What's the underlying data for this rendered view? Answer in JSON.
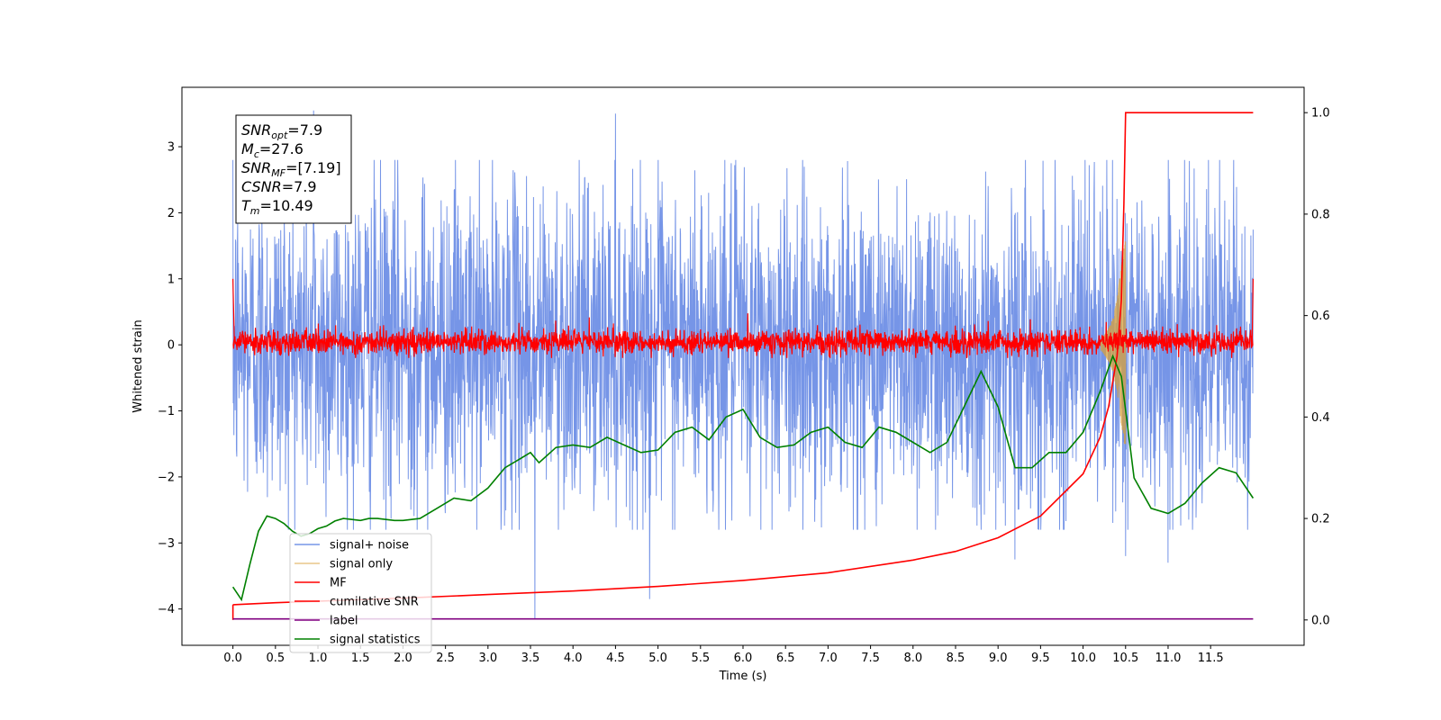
{
  "chart_data": {
    "type": "line",
    "title": "",
    "xlabel": "Time (s)",
    "ylabel": "Whitened strain",
    "y2label": "",
    "xlim": [
      -0.6,
      12.6
    ],
    "ylim": [
      -4.55,
      3.9
    ],
    "y2lim": [
      -0.05,
      1.05
    ],
    "xticks": [
      0.0,
      0.5,
      1.0,
      1.5,
      2.0,
      2.5,
      3.0,
      3.5,
      4.0,
      4.5,
      5.0,
      5.5,
      6.0,
      6.5,
      7.0,
      7.5,
      8.0,
      8.5,
      9.0,
      9.5,
      10.0,
      10.5,
      11.0,
      11.5
    ],
    "xtick_labels": [
      "0.0",
      "0.5",
      "1.0",
      "1.5",
      "2.0",
      "2.5",
      "3.0",
      "3.5",
      "4.0",
      "4.5",
      "5.0",
      "5.5",
      "6.0",
      "6.5",
      "7.0",
      "7.5",
      "8.0",
      "8.5",
      "9.0",
      "9.5",
      "10.0",
      "10.5",
      "11.0",
      "11.5"
    ],
    "yticks": [
      -4,
      -3,
      -2,
      -1,
      0,
      1,
      2,
      3
    ],
    "ytick_labels": [
      "−4",
      "−3",
      "−2",
      "−1",
      "0",
      "1",
      "2",
      "3"
    ],
    "y2ticks": [
      0.0,
      0.2,
      0.4,
      0.6,
      0.8,
      1.0
    ],
    "y2tick_labels": [
      "0.0",
      "0.2",
      "0.4",
      "0.6",
      "0.8",
      "1.0"
    ],
    "grid": false,
    "legend_position": "lower-left",
    "colors": {
      "signal_noise": "#6f8fe6",
      "signal_only": "#d9a23a",
      "mf": "#ff0000",
      "cum_snr": "#ff0000",
      "label": "#800080",
      "signal_statistics": "#008000"
    },
    "series": [
      {
        "name": "signal+ noise",
        "axis": "left",
        "description": "dense noise band, roughly -2.2 to 2.2 with spikes to ±3.5",
        "x_range": [
          0.0,
          12.0
        ],
        "envelope": [
          -2.2,
          2.2
        ],
        "spikes": [
          [
            0.95,
            3.55
          ],
          [
            3.55,
            -4.15
          ],
          [
            4.9,
            -3.85
          ],
          [
            4.5,
            3.5
          ],
          [
            9.2,
            -3.25
          ],
          [
            10.5,
            -3.2
          ],
          [
            11.0,
            -3.3
          ]
        ]
      },
      {
        "name": "signal only",
        "axis": "left",
        "description": "chirp near merger",
        "x": [
          10.2,
          10.3,
          10.35,
          10.4,
          10.45,
          10.5
        ],
        "amplitude": [
          0.05,
          0.25,
          0.4,
          0.7,
          1.2,
          1.6
        ]
      },
      {
        "name": "MF",
        "axis": "left",
        "description": "matched-filter output band, roughly -0.15 to 0.25 with spikes to 0.55",
        "x_range": [
          0.0,
          12.0
        ],
        "envelope": [
          -0.15,
          0.25
        ],
        "start_value": 1.0,
        "end_value": 1.0
      },
      {
        "name": "cumilative SNR",
        "axis": "right",
        "x": [
          0.0,
          0.5,
          1.0,
          2.0,
          3.0,
          4.0,
          5.0,
          6.0,
          7.0,
          8.0,
          8.5,
          9.0,
          9.5,
          10.0,
          10.2,
          10.3,
          10.4,
          10.45,
          10.48,
          10.5,
          10.55,
          11.0,
          11.5,
          12.0
        ],
        "values": [
          0.03,
          0.034,
          0.037,
          0.043,
          0.05,
          0.057,
          0.066,
          0.078,
          0.093,
          0.118,
          0.135,
          0.162,
          0.205,
          0.288,
          0.36,
          0.42,
          0.52,
          0.63,
          0.82,
          1.0,
          1.0,
          1.0,
          1.0,
          1.0
        ]
      },
      {
        "name": "label",
        "axis": "right",
        "x": [
          0.0,
          12.0
        ],
        "values": [
          0.002,
          0.002
        ]
      },
      {
        "name": "signal statistics",
        "axis": "right",
        "x": [
          0.0,
          0.1,
          0.2,
          0.3,
          0.4,
          0.5,
          0.6,
          0.7,
          0.8,
          0.9,
          1.0,
          1.1,
          1.2,
          1.3,
          1.4,
          1.5,
          1.6,
          1.7,
          1.8,
          1.9,
          2.0,
          2.2,
          2.4,
          2.6,
          2.8,
          3.0,
          3.2,
          3.4,
          3.5,
          3.6,
          3.8,
          4.0,
          4.2,
          4.4,
          4.6,
          4.8,
          5.0,
          5.2,
          5.4,
          5.6,
          5.8,
          6.0,
          6.2,
          6.4,
          6.6,
          6.8,
          7.0,
          7.2,
          7.4,
          7.6,
          7.8,
          8.0,
          8.2,
          8.4,
          8.6,
          8.8,
          9.0,
          9.2,
          9.4,
          9.6,
          9.8,
          10.0,
          10.2,
          10.35,
          10.45,
          10.6,
          10.8,
          11.0,
          11.2,
          11.4,
          11.6,
          11.8,
          12.0
        ],
        "values": [
          0.065,
          0.04,
          0.11,
          0.175,
          0.205,
          0.2,
          0.19,
          0.175,
          0.165,
          0.17,
          0.18,
          0.185,
          0.195,
          0.2,
          0.198,
          0.196,
          0.2,
          0.2,
          0.198,
          0.196,
          0.196,
          0.2,
          0.22,
          0.24,
          0.235,
          0.26,
          0.3,
          0.32,
          0.33,
          0.31,
          0.34,
          0.345,
          0.34,
          0.36,
          0.345,
          0.33,
          0.335,
          0.37,
          0.38,
          0.355,
          0.4,
          0.415,
          0.36,
          0.34,
          0.345,
          0.37,
          0.38,
          0.35,
          0.34,
          0.38,
          0.37,
          0.35,
          0.33,
          0.35,
          0.42,
          0.49,
          0.42,
          0.3,
          0.3,
          0.33,
          0.33,
          0.37,
          0.45,
          0.52,
          0.48,
          0.28,
          0.22,
          0.21,
          0.23,
          0.27,
          0.3,
          0.29,
          0.24
        ]
      }
    ],
    "annotations": [
      {
        "var": "SNR",
        "sub": "opt",
        "text": "=7.9"
      },
      {
        "var": "M",
        "sub": "c",
        "text": "=27.6"
      },
      {
        "var": "SNR",
        "sub": "MF",
        "text": "=[7.19]"
      },
      {
        "var": "CSNR",
        "sub": "",
        "text": "=7.9"
      },
      {
        "var": "T",
        "sub": "m",
        "text": "=10.49"
      }
    ]
  }
}
